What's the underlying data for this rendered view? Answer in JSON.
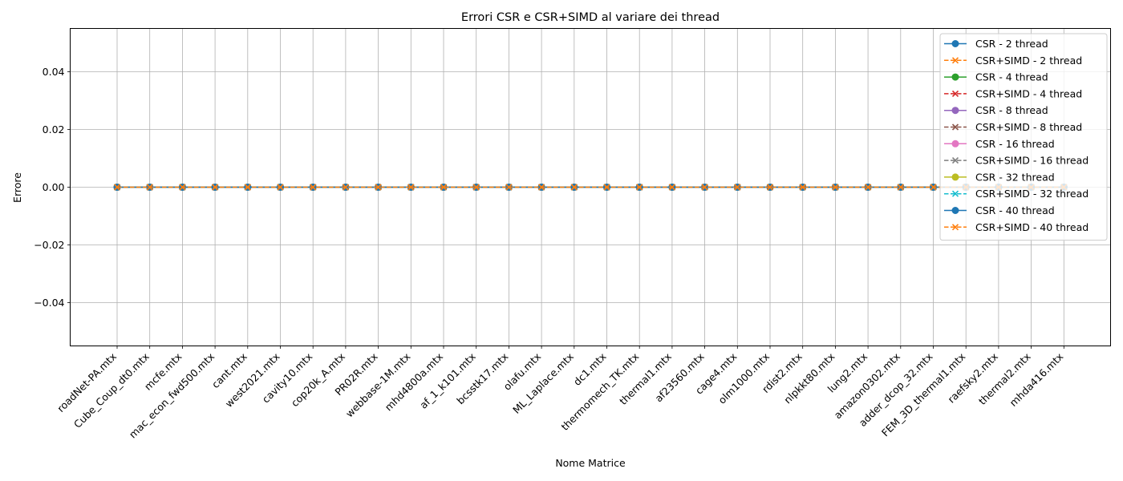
{
  "chart_data": {
    "type": "line",
    "title": "Errori CSR e CSR+SIMD al variare dei thread",
    "xlabel": "Nome Matrice",
    "ylabel": "Errore",
    "ylim": [
      -0.055,
      0.055
    ],
    "yticks": [
      -0.04,
      -0.02,
      0.0,
      0.02,
      0.04
    ],
    "ytick_labels": [
      "−0.04",
      "−0.02",
      "0.00",
      "0.02",
      "0.04"
    ],
    "grid": true,
    "legend_position": "top-right",
    "categories": [
      "roadNet-PA.mtx",
      "Cube_Coup_dt0.mtx",
      "mcfe.mtx",
      "mac_econ_fwd500.mtx",
      "cant.mtx",
      "west2021.mtx",
      "cavity10.mtx",
      "cop20k_A.mtx",
      "PR02R.mtx",
      "webbase-1M.mtx",
      "mhd4800a.mtx",
      "af_1_k101.mtx",
      "bcsstk17.mtx",
      "olafu.mtx",
      "ML_Laplace.mtx",
      "dc1.mtx",
      "thermomech_TK.mtx",
      "thermal1.mtx",
      "af23560.mtx",
      "cage4.mtx",
      "olm1000.mtx",
      "rdist2.mtx",
      "nlpkkt80.mtx",
      "lung2.mtx",
      "amazon0302.mtx",
      "adder_dcop_32.mtx",
      "FEM_3D_thermal1.mtx",
      "raefsky2.mtx",
      "thermal2.mtx",
      "mhda416.mtx"
    ],
    "series": [
      {
        "name": "CSR - 2 thread",
        "color": "#1f77b4",
        "marker": "circle",
        "dashed": false,
        "values": [
          0,
          0,
          0,
          0,
          0,
          0,
          0,
          0,
          0,
          0,
          0,
          0,
          0,
          0,
          0,
          0,
          0,
          0,
          0,
          0,
          0,
          0,
          0,
          0,
          0,
          0,
          0,
          0,
          0,
          0
        ]
      },
      {
        "name": "CSR+SIMD - 2 thread",
        "color": "#ff7f0e",
        "marker": "x",
        "dashed": true,
        "values": [
          0,
          0,
          0,
          0,
          0,
          0,
          0,
          0,
          0,
          0,
          0,
          0,
          0,
          0,
          0,
          0,
          0,
          0,
          0,
          0,
          0,
          0,
          0,
          0,
          0,
          0,
          0,
          0,
          0,
          0
        ]
      },
      {
        "name": "CSR - 4 thread",
        "color": "#2ca02c",
        "marker": "circle",
        "dashed": false,
        "values": [
          0,
          0,
          0,
          0,
          0,
          0,
          0,
          0,
          0,
          0,
          0,
          0,
          0,
          0,
          0,
          0,
          0,
          0,
          0,
          0,
          0,
          0,
          0,
          0,
          0,
          0,
          0,
          0,
          0,
          0
        ]
      },
      {
        "name": "CSR+SIMD - 4 thread",
        "color": "#d62728",
        "marker": "x",
        "dashed": true,
        "values": [
          0,
          0,
          0,
          0,
          0,
          0,
          0,
          0,
          0,
          0,
          0,
          0,
          0,
          0,
          0,
          0,
          0,
          0,
          0,
          0,
          0,
          0,
          0,
          0,
          0,
          0,
          0,
          0,
          0,
          0
        ]
      },
      {
        "name": "CSR - 8 thread",
        "color": "#9467bd",
        "marker": "circle",
        "dashed": false,
        "values": [
          0,
          0,
          0,
          0,
          0,
          0,
          0,
          0,
          0,
          0,
          0,
          0,
          0,
          0,
          0,
          0,
          0,
          0,
          0,
          0,
          0,
          0,
          0,
          0,
          0,
          0,
          0,
          0,
          0,
          0
        ]
      },
      {
        "name": "CSR+SIMD - 8 thread",
        "color": "#8c564b",
        "marker": "x",
        "dashed": true,
        "values": [
          0,
          0,
          0,
          0,
          0,
          0,
          0,
          0,
          0,
          0,
          0,
          0,
          0,
          0,
          0,
          0,
          0,
          0,
          0,
          0,
          0,
          0,
          0,
          0,
          0,
          0,
          0,
          0,
          0,
          0
        ]
      },
      {
        "name": "CSR - 16 thread",
        "color": "#e377c2",
        "marker": "circle",
        "dashed": false,
        "values": [
          0,
          0,
          0,
          0,
          0,
          0,
          0,
          0,
          0,
          0,
          0,
          0,
          0,
          0,
          0,
          0,
          0,
          0,
          0,
          0,
          0,
          0,
          0,
          0,
          0,
          0,
          0,
          0,
          0,
          0
        ]
      },
      {
        "name": "CSR+SIMD - 16 thread",
        "color": "#7f7f7f",
        "marker": "x",
        "dashed": true,
        "values": [
          0,
          0,
          0,
          0,
          0,
          0,
          0,
          0,
          0,
          0,
          0,
          0,
          0,
          0,
          0,
          0,
          0,
          0,
          0,
          0,
          0,
          0,
          0,
          0,
          0,
          0,
          0,
          0,
          0,
          0
        ]
      },
      {
        "name": "CSR - 32 thread",
        "color": "#bcbd22",
        "marker": "circle",
        "dashed": false,
        "values": [
          0,
          0,
          0,
          0,
          0,
          0,
          0,
          0,
          0,
          0,
          0,
          0,
          0,
          0,
          0,
          0,
          0,
          0,
          0,
          0,
          0,
          0,
          0,
          0,
          0,
          0,
          0,
          0,
          0,
          0
        ]
      },
      {
        "name": "CSR+SIMD - 32 thread",
        "color": "#17becf",
        "marker": "x",
        "dashed": true,
        "values": [
          0,
          0,
          0,
          0,
          0,
          0,
          0,
          0,
          0,
          0,
          0,
          0,
          0,
          0,
          0,
          0,
          0,
          0,
          0,
          0,
          0,
          0,
          0,
          0,
          0,
          0,
          0,
          0,
          0,
          0
        ]
      },
      {
        "name": "CSR - 40 thread",
        "color": "#1f77b4",
        "marker": "circle",
        "dashed": false,
        "values": [
          0,
          0,
          0,
          0,
          0,
          0,
          0,
          0,
          0,
          0,
          0,
          0,
          0,
          0,
          0,
          0,
          0,
          0,
          0,
          0,
          0,
          0,
          0,
          0,
          0,
          0,
          0,
          0,
          0,
          0
        ]
      },
      {
        "name": "CSR+SIMD - 40 thread",
        "color": "#ff7f0e",
        "marker": "x",
        "dashed": true,
        "values": [
          0,
          0,
          0,
          0,
          0,
          0,
          0,
          0,
          0,
          0,
          0,
          0,
          0,
          0,
          0,
          0,
          0,
          0,
          0,
          0,
          0,
          0,
          0,
          0,
          0,
          0,
          0,
          0,
          0,
          0
        ]
      }
    ]
  }
}
